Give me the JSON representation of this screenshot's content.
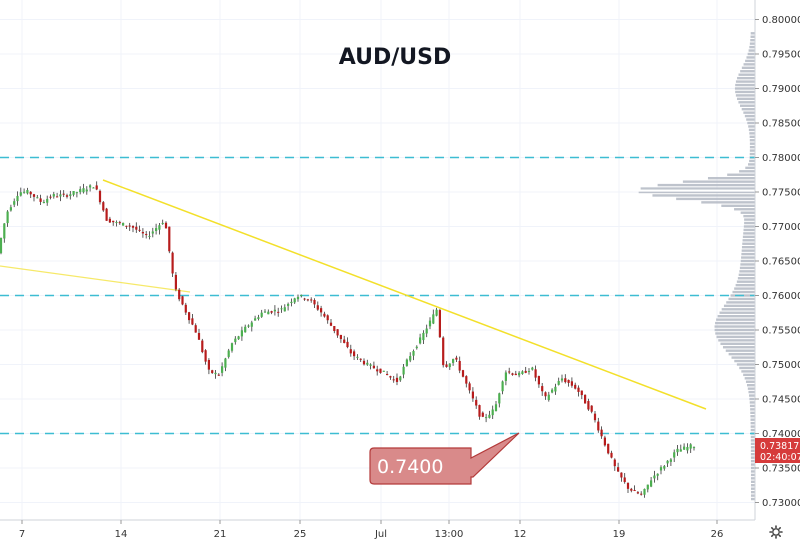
{
  "chart_data": {
    "type": "candlestick",
    "title": "AUD/USD",
    "ylim": [
      0.7275,
      0.8015
    ],
    "y_ticks": [
      "0.73000",
      "0.73500",
      "0.74000",
      "0.74500",
      "0.75000",
      "0.75500",
      "0.76000",
      "0.76500",
      "0.77000",
      "0.77500",
      "0.78000",
      "0.78500",
      "0.79000",
      "0.79500",
      "0.80000"
    ],
    "x_ticks": [
      "7",
      "14",
      "21",
      "25",
      "Jul",
      "13:00",
      "12",
      "19",
      "26"
    ],
    "horizontal_levels": [
      0.78,
      0.76,
      0.74
    ],
    "annotation": {
      "text": "0.7400",
      "level": 0.74
    },
    "last_price": {
      "value": "0.73817",
      "countdown": "02:40:07"
    },
    "grid": true,
    "colors": {
      "up": "#26a69a",
      "down": "#ef5350",
      "candle_up_fill": "#4caf50",
      "candle_down_fill": "#b71c1c",
      "level_line": "#3dbdd2",
      "trend_line": "#f3e02a",
      "callout_bg": "#d98a8a",
      "callout_border": "#b33a3a",
      "price_label_bg": "#d63b3b",
      "volume_profile": "#b3b8c3"
    }
  },
  "settings_icon": "gear-icon"
}
